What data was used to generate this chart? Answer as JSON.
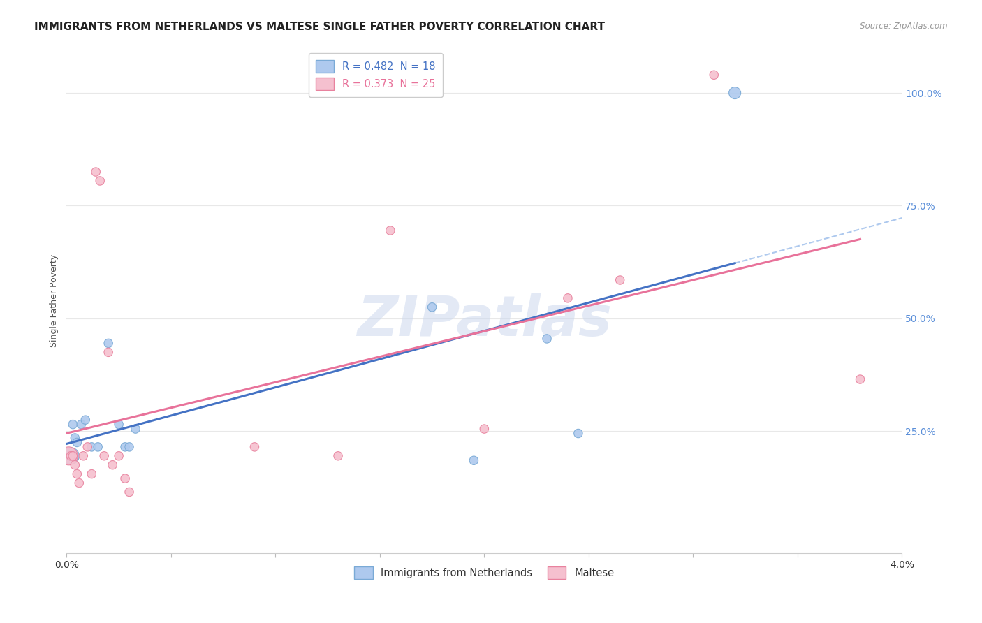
{
  "title": "IMMIGRANTS FROM NETHERLANDS VS MALTESE SINGLE FATHER POVERTY CORRELATION CHART",
  "source": "Source: ZipAtlas.com",
  "ylabel": "Single Father Poverty",
  "right_yticks": [
    "100.0%",
    "75.0%",
    "50.0%",
    "25.0%"
  ],
  "right_ytick_vals": [
    1.0,
    0.75,
    0.5,
    0.25
  ],
  "xlim": [
    0.0,
    0.04
  ],
  "ylim": [
    -0.02,
    1.1
  ],
  "blue_series": {
    "label": "Immigrants from Netherlands",
    "R": 0.482,
    "N": 18,
    "color": "#aec9ee",
    "edge_color": "#7aaad6",
    "line_color": "#4472c4",
    "x": [
      0.0002,
      0.0003,
      0.0004,
      0.0005,
      0.0007,
      0.0009,
      0.0012,
      0.0015,
      0.002,
      0.0025,
      0.0028,
      0.003,
      0.0033,
      0.0175,
      0.0195,
      0.023,
      0.0245,
      0.032
    ],
    "y": [
      0.195,
      0.265,
      0.235,
      0.225,
      0.265,
      0.275,
      0.215,
      0.215,
      0.445,
      0.265,
      0.215,
      0.215,
      0.255,
      0.525,
      0.185,
      0.455,
      0.245,
      1.0
    ],
    "sizes": [
      300,
      80,
      80,
      80,
      80,
      80,
      80,
      80,
      80,
      80,
      80,
      80,
      80,
      80,
      80,
      80,
      80,
      150
    ]
  },
  "pink_series": {
    "label": "Maltese",
    "R": 0.373,
    "N": 25,
    "color": "#f5c0cf",
    "edge_color": "#e8829e",
    "line_color": "#e8729a",
    "x": [
      0.0001,
      0.0002,
      0.0003,
      0.0004,
      0.0005,
      0.0006,
      0.0008,
      0.001,
      0.0012,
      0.0014,
      0.0016,
      0.0018,
      0.002,
      0.0022,
      0.0025,
      0.0028,
      0.003,
      0.009,
      0.013,
      0.0155,
      0.02,
      0.024,
      0.0265,
      0.031,
      0.038
    ],
    "y": [
      0.195,
      0.195,
      0.195,
      0.175,
      0.155,
      0.135,
      0.195,
      0.215,
      0.155,
      0.825,
      0.805,
      0.195,
      0.425,
      0.175,
      0.195,
      0.145,
      0.115,
      0.215,
      0.195,
      0.695,
      0.255,
      0.545,
      0.585,
      1.04,
      0.365
    ],
    "sizes": [
      350,
      80,
      80,
      80,
      80,
      80,
      80,
      80,
      80,
      80,
      80,
      80,
      80,
      80,
      80,
      80,
      80,
      80,
      80,
      80,
      80,
      80,
      80,
      80,
      80
    ]
  },
  "background_color": "#ffffff",
  "grid_color": "#e8e8e8",
  "watermark": "ZIPatlas",
  "watermark_color": "#ccd8ee",
  "title_fontsize": 11,
  "axis_fontsize": 10
}
